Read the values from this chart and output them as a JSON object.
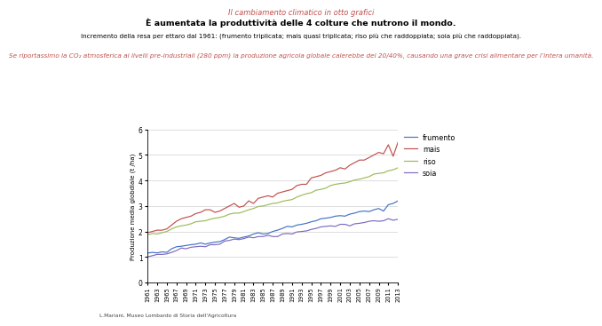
{
  "title_line1": "Il cambiamento climatico in otto grafici",
  "title_line2": "È aumentata la produttività delle 4 colture che nutrono il mondo.",
  "title_line3": "Incremento della resa per ettaro dal 1961: (frumento triplicata; mais quasi triplicata; riso più che raddoppiata; soia più che raddoppiata).",
  "title_line4": "Se riportassimo la CO₂ atmosferica ai livelli pre-industriali (280 ppm) la produzione agricola globale calerebbe del 20/40%, causando una grave crisi alimentare per l’intera umanità.",
  "ylabel": "Produzione media globdiale (t /ha)",
  "caption": "L.Mariani, Museo Lombardo di Storia dell'Agricoltura",
  "years": [
    1961,
    1962,
    1963,
    1964,
    1965,
    1966,
    1967,
    1968,
    1969,
    1970,
    1971,
    1972,
    1973,
    1974,
    1975,
    1976,
    1977,
    1978,
    1979,
    1980,
    1981,
    1982,
    1983,
    1984,
    1985,
    1986,
    1987,
    1988,
    1989,
    1990,
    1991,
    1992,
    1993,
    1994,
    1995,
    1996,
    1997,
    1998,
    1999,
    2000,
    2001,
    2002,
    2003,
    2004,
    2005,
    2006,
    2007,
    2008,
    2009,
    2010,
    2011,
    2012,
    2013
  ],
  "frumento": [
    1.15,
    1.18,
    1.16,
    1.2,
    1.18,
    1.32,
    1.4,
    1.42,
    1.45,
    1.48,
    1.5,
    1.55,
    1.5,
    1.55,
    1.58,
    1.6,
    1.68,
    1.78,
    1.75,
    1.73,
    1.78,
    1.82,
    1.9,
    1.95,
    1.9,
    1.92,
    2.0,
    2.05,
    2.12,
    2.2,
    2.18,
    2.25,
    2.28,
    2.32,
    2.38,
    2.42,
    2.5,
    2.52,
    2.55,
    2.6,
    2.62,
    2.6,
    2.68,
    2.72,
    2.78,
    2.8,
    2.78,
    2.85,
    2.9,
    2.8,
    3.05,
    3.1,
    3.2
  ],
  "mais": [
    1.95,
    2.0,
    2.05,
    2.05,
    2.1,
    2.25,
    2.4,
    2.5,
    2.55,
    2.6,
    2.7,
    2.75,
    2.85,
    2.85,
    2.75,
    2.8,
    2.9,
    3.0,
    3.1,
    2.95,
    3.0,
    3.2,
    3.1,
    3.3,
    3.35,
    3.4,
    3.35,
    3.5,
    3.55,
    3.6,
    3.65,
    3.8,
    3.85,
    3.85,
    4.1,
    4.15,
    4.2,
    4.3,
    4.35,
    4.4,
    4.5,
    4.45,
    4.6,
    4.7,
    4.8,
    4.8,
    4.9,
    5.0,
    5.1,
    5.05,
    5.4,
    4.95,
    5.5
  ],
  "riso": [
    1.87,
    1.92,
    1.9,
    1.95,
    2.0,
    2.1,
    2.18,
    2.22,
    2.25,
    2.3,
    2.38,
    2.4,
    2.42,
    2.48,
    2.52,
    2.55,
    2.6,
    2.68,
    2.72,
    2.72,
    2.78,
    2.85,
    2.9,
    2.98,
    3.0,
    3.05,
    3.1,
    3.12,
    3.18,
    3.22,
    3.25,
    3.35,
    3.42,
    3.48,
    3.52,
    3.62,
    3.65,
    3.7,
    3.8,
    3.85,
    3.88,
    3.9,
    3.95,
    4.02,
    4.05,
    4.1,
    4.15,
    4.25,
    4.28,
    4.3,
    4.38,
    4.42,
    4.5
  ],
  "soia": [
    1.0,
    1.05,
    1.1,
    1.1,
    1.12,
    1.18,
    1.25,
    1.35,
    1.32,
    1.38,
    1.4,
    1.42,
    1.4,
    1.48,
    1.48,
    1.5,
    1.62,
    1.65,
    1.7,
    1.68,
    1.72,
    1.78,
    1.75,
    1.8,
    1.8,
    1.85,
    1.8,
    1.8,
    1.9,
    1.92,
    1.9,
    1.98,
    2.0,
    2.02,
    2.08,
    2.12,
    2.18,
    2.2,
    2.22,
    2.2,
    2.28,
    2.28,
    2.22,
    2.3,
    2.32,
    2.35,
    2.4,
    2.42,
    2.4,
    2.42,
    2.5,
    2.44,
    2.48
  ],
  "color_frumento": "#4472c4",
  "color_mais": "#c0504d",
  "color_riso": "#9bbb59",
  "color_soia": "#7f6ac0",
  "title_color1": "#c0504d",
  "title_color2": "#000000",
  "title_color3": "#000000",
  "title_color4": "#c0504d",
  "ylim": [
    0,
    6
  ],
  "yticks": [
    0,
    1,
    2,
    3,
    4,
    5,
    6
  ],
  "bg_color": "#ffffff",
  "plot_bg": "#ffffff"
}
